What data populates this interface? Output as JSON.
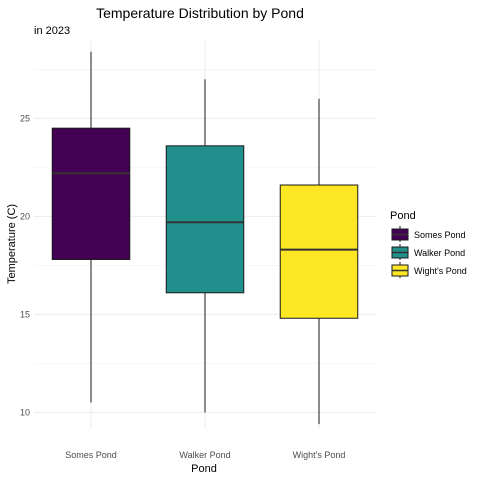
{
  "chart_data": {
    "type": "boxplot",
    "title": "Temperature Distribution by Pond",
    "subtitle": "in 2023",
    "xlabel": "Pond",
    "ylabel": "Temperature (C)",
    "ylim": [
      9.2,
      29.0
    ],
    "yticks": [
      10,
      15,
      20,
      25
    ],
    "grid": true,
    "legend": {
      "title": "Pond",
      "position": "right"
    },
    "categories": [
      "Somes Pond",
      "Walker Pond",
      "Wight's Pond"
    ],
    "series": [
      {
        "name": "Somes Pond",
        "color": "#440154",
        "whisker_low": 10.5,
        "q1": 17.8,
        "median": 22.2,
        "q3": 24.5,
        "whisker_high": 28.4
      },
      {
        "name": "Walker Pond",
        "color": "#21908C",
        "whisker_low": 10.0,
        "q1": 16.1,
        "median": 19.7,
        "q3": 23.6,
        "whisker_high": 27.0
      },
      {
        "name": "Wight's Pond",
        "color": "#FDE725",
        "whisker_low": 9.4,
        "q1": 14.8,
        "median": 18.3,
        "q3": 21.6,
        "whisker_high": 26.0
      }
    ]
  }
}
